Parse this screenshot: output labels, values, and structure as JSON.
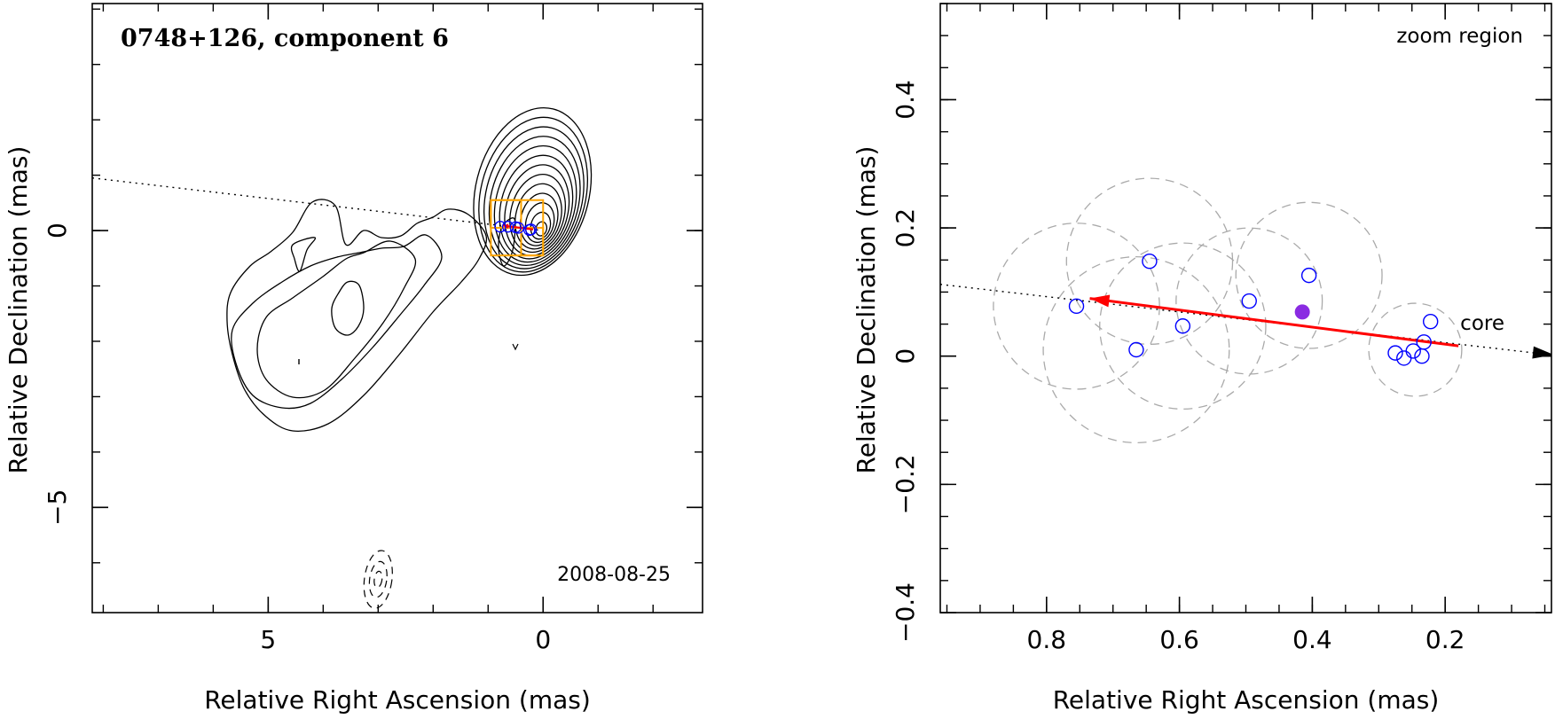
{
  "chart_data": [
    {
      "type": "contour",
      "title": "0748+126, component 6",
      "date_label": "2008-08-25",
      "xlabel": "Relative Right Ascension (mas)",
      "ylabel": "Relative Declination (mas)",
      "xlim": [
        8.2,
        -2.9
      ],
      "ylim": [
        -6.9,
        4.1
      ],
      "x_ticks": [
        5,
        0
      ],
      "x_tick_labels": [
        "5",
        "0"
      ],
      "y_ticks": [
        0,
        -5
      ],
      "y_tick_labels": [
        "0",
        "−5"
      ],
      "grid": false,
      "components": [
        {
          "x": 0.78,
          "y": 0.07
        },
        {
          "x": 0.64,
          "y": 0.07
        },
        {
          "x": 0.5,
          "y": 0.06
        },
        {
          "x": 0.45,
          "y": 0.05
        },
        {
          "x": 0.25,
          "y": 0.01
        },
        {
          "x": 0.22,
          "y": 0.02
        }
      ],
      "motion_arrow": {
        "x0": 0.18,
        "y0": 0.02,
        "x1": 0.73,
        "y1": 0.09,
        "color": "#ff0000"
      },
      "direction_line": {
        "x0": 8.2,
        "y0": 0.95,
        "x1": 0.0,
        "y1": 0.0
      },
      "zoom_box_color": "#ffa500",
      "beam": {
        "x": 3.0,
        "y": -6.3,
        "major": 1.05,
        "minor": 0.5
      }
    },
    {
      "type": "scatter",
      "title": "zoom region",
      "annotation": "core",
      "xlabel": "Relative Right Ascension (mas)",
      "ylabel": "Relative Declination (mas)",
      "xlim": [
        0.96,
        0.04
      ],
      "ylim": [
        -0.4,
        0.55
      ],
      "x_ticks": [
        0.8,
        0.6,
        0.4,
        0.2
      ],
      "x_tick_labels": [
        "0.8",
        "0.6",
        "0.4",
        "0.2"
      ],
      "y_ticks": [
        0.4,
        0.2,
        0,
        -0.2,
        -0.4
      ],
      "y_tick_labels": [
        "0.4",
        "0.2",
        "0",
        "−0.2",
        "−0.4"
      ],
      "grid": false,
      "points": [
        {
          "x": 0.755,
          "y": 0.078
        },
        {
          "x": 0.645,
          "y": 0.148
        },
        {
          "x": 0.595,
          "y": 0.047
        },
        {
          "x": 0.665,
          "y": 0.01
        },
        {
          "x": 0.495,
          "y": 0.086
        },
        {
          "x": 0.405,
          "y": 0.126
        },
        {
          "x": 0.275,
          "y": 0.005
        },
        {
          "x": 0.262,
          "y": -0.003
        },
        {
          "x": 0.248,
          "y": 0.008
        },
        {
          "x": 0.232,
          "y": 0.022
        },
        {
          "x": 0.222,
          "y": 0.054
        },
        {
          "x": 0.235,
          "y": 0.0
        }
      ],
      "point_color": "#0000ff",
      "mean_point": {
        "x": 0.415,
        "y": 0.069,
        "color": "#8a2be2"
      },
      "uncertainty_circles": [
        {
          "x": 0.755,
          "y": 0.078,
          "r": 0.125
        },
        {
          "x": 0.645,
          "y": 0.148,
          "r": 0.125
        },
        {
          "x": 0.595,
          "y": 0.047,
          "r": 0.125
        },
        {
          "x": 0.665,
          "y": 0.01,
          "r": 0.14
        },
        {
          "x": 0.495,
          "y": 0.086,
          "r": 0.11
        },
        {
          "x": 0.405,
          "y": 0.126,
          "r": 0.11
        },
        {
          "x": 0.245,
          "y": 0.01,
          "r": 0.07
        }
      ],
      "motion_arrow": {
        "x0": 0.18,
        "y0": 0.016,
        "x1": 0.735,
        "y1": 0.09,
        "color": "#ff0000"
      },
      "direction_line": {
        "x0": 0.96,
        "y0": 0.112,
        "x1": 0.04,
        "y1": 0.002
      }
    }
  ]
}
